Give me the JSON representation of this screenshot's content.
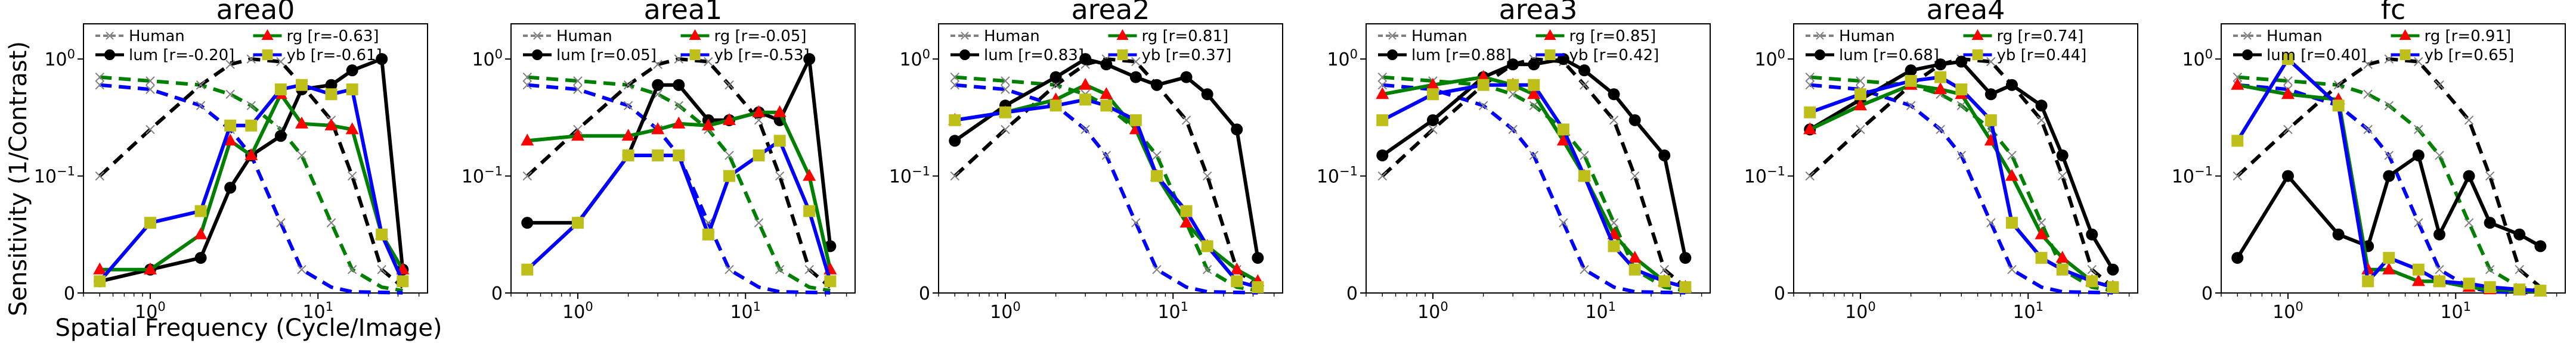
{
  "figure": {
    "ylabel": "Sensitivity (1/Contrast)",
    "xlabel": "Spatial Frequency (Cycle/Image)"
  },
  "style": {
    "colors": {
      "lum": "#000000",
      "rg": "#ff0000",
      "yb": "#bfbf1a",
      "human": "#808080"
    },
    "line_colors": {
      "lum": "#000000",
      "rg": "#008000",
      "yb": "#0000ff"
    }
  },
  "chart_data": [
    {
      "type": "line",
      "title": "area0",
      "legend": {
        "placement": "top",
        "human": "Human",
        "lum": "lum [r=-0.20]",
        "rg": "rg    [r=-0.63]",
        "yb": "yb    [r=-0.61]"
      },
      "x_scale": "log",
      "y_scale": "symlog",
      "xlim": [
        0.4,
        45
      ],
      "ylim": [
        0,
        2
      ],
      "xticks": [
        "10^0",
        "10^1"
      ],
      "yticks": [
        "0",
        "10^-1",
        "10^0"
      ],
      "x": [
        0.5,
        1.0,
        2.0,
        3.0,
        4.0,
        6.0,
        8.0,
        12.0,
        16.0,
        24.0,
        32.0
      ],
      "series": [
        {
          "key": "lum",
          "y": [
            0.01,
            0.02,
            0.03,
            0.09,
            0.15,
            0.22,
            0.55,
            0.6,
            0.8,
            1.0,
            0.02
          ]
        },
        {
          "key": "rg",
          "y": [
            0.02,
            0.02,
            0.05,
            0.2,
            0.15,
            0.5,
            0.28,
            0.27,
            0.25,
            0.05,
            0.02
          ]
        },
        {
          "key": "yb",
          "y": [
            0.01,
            0.06,
            0.07,
            0.27,
            0.27,
            0.55,
            0.6,
            0.5,
            0.55,
            0.05,
            0.01
          ]
        }
      ],
      "human": {
        "lum": [
          0.1,
          0.25,
          0.6,
          0.9,
          1.0,
          0.95,
          0.6,
          0.3,
          0.1,
          0.02,
          0.005
        ],
        "rg": [
          0.7,
          0.65,
          0.6,
          0.5,
          0.4,
          0.25,
          0.15,
          0.06,
          0.02,
          0.005,
          0.002
        ],
        "yb": [
          0.6,
          0.55,
          0.4,
          0.25,
          0.15,
          0.06,
          0.02,
          0.005,
          0.001,
          0.0005,
          0.0002
        ]
      }
    },
    {
      "type": "line",
      "title": "area1",
      "legend": {
        "placement": "top",
        "human": "Human",
        "lum": "lum [r=0.05]",
        "rg": "rg    [r=-0.05]",
        "yb": "yb    [r=-0.53]"
      },
      "x_scale": "log",
      "y_scale": "symlog",
      "xlim": [
        0.4,
        45
      ],
      "ylim": [
        0,
        2
      ],
      "xticks": [
        "10^0",
        "10^1"
      ],
      "yticks": [
        "0",
        "10^-1",
        "10^0"
      ],
      "x": [
        0.5,
        1.0,
        2.0,
        3.0,
        4.0,
        6.0,
        8.0,
        12.0,
        16.0,
        24.0,
        32.0
      ],
      "series": [
        {
          "key": "lum",
          "y": [
            0.06,
            0.06,
            0.15,
            0.6,
            0.6,
            0.3,
            0.3,
            0.35,
            0.3,
            1.0,
            0.04
          ]
        },
        {
          "key": "rg",
          "y": [
            0.2,
            0.22,
            0.22,
            0.25,
            0.28,
            0.27,
            0.3,
            0.35,
            0.35,
            0.1,
            0.02
          ]
        },
        {
          "key": "yb",
          "y": [
            0.02,
            0.06,
            0.15,
            0.15,
            0.15,
            0.05,
            0.1,
            0.15,
            0.2,
            0.07,
            0.01
          ]
        }
      ],
      "human": {
        "lum": [
          0.1,
          0.25,
          0.6,
          0.9,
          1.0,
          0.95,
          0.6,
          0.3,
          0.1,
          0.02,
          0.005
        ],
        "rg": [
          0.7,
          0.65,
          0.6,
          0.5,
          0.4,
          0.25,
          0.15,
          0.06,
          0.02,
          0.005,
          0.002
        ],
        "yb": [
          0.6,
          0.55,
          0.4,
          0.25,
          0.15,
          0.06,
          0.02,
          0.005,
          0.001,
          0.0005,
          0.0002
        ]
      }
    },
    {
      "type": "line",
      "title": "area2",
      "legend": {
        "placement": "top",
        "human": "Human",
        "lum": "lum [r=0.83]",
        "rg": "rg    [r=0.81]",
        "yb": "yb    [r=0.37]"
      },
      "x_scale": "log",
      "y_scale": "symlog",
      "xlim": [
        0.4,
        45
      ],
      "ylim": [
        0,
        2
      ],
      "xticks": [
        "10^0",
        "10^1"
      ],
      "yticks": [
        "0",
        "10^-1",
        "10^0"
      ],
      "x": [
        0.5,
        1.0,
        2.0,
        3.0,
        4.0,
        6.0,
        8.0,
        12.0,
        16.0,
        24.0,
        32.0
      ],
      "series": [
        {
          "key": "lum",
          "y": [
            0.2,
            0.4,
            0.7,
            1.0,
            0.9,
            0.7,
            0.6,
            0.7,
            0.5,
            0.25,
            0.03
          ]
        },
        {
          "key": "rg",
          "y": [
            0.3,
            0.35,
            0.45,
            0.6,
            0.5,
            0.25,
            0.1,
            0.06,
            0.04,
            0.02,
            0.01
          ]
        },
        {
          "key": "yb",
          "y": [
            0.3,
            0.35,
            0.4,
            0.45,
            0.4,
            0.3,
            0.1,
            0.07,
            0.04,
            0.01,
            0.005
          ]
        }
      ],
      "human": {
        "lum": [
          0.1,
          0.25,
          0.6,
          0.9,
          1.0,
          0.95,
          0.6,
          0.3,
          0.1,
          0.02,
          0.005
        ],
        "rg": [
          0.7,
          0.65,
          0.6,
          0.5,
          0.4,
          0.25,
          0.15,
          0.06,
          0.02,
          0.005,
          0.002
        ],
        "yb": [
          0.6,
          0.55,
          0.4,
          0.25,
          0.15,
          0.06,
          0.02,
          0.005,
          0.001,
          0.0005,
          0.0002
        ]
      }
    },
    {
      "type": "line",
      "title": "area3",
      "legend": {
        "placement": "top",
        "human": "Human",
        "lum": "lum [r=0.88]",
        "rg": "rg    [r=0.85]",
        "yb": "yb    [r=0.42]"
      },
      "x_scale": "log",
      "y_scale": "symlog",
      "xlim": [
        0.4,
        45
      ],
      "ylim": [
        0,
        2
      ],
      "xticks": [
        "10^0",
        "10^1"
      ],
      "yticks": [
        "0",
        "10^-1",
        "10^0"
      ],
      "x": [
        0.5,
        1.0,
        2.0,
        3.0,
        4.0,
        6.0,
        8.0,
        12.0,
        16.0,
        24.0,
        32.0
      ],
      "series": [
        {
          "key": "lum",
          "y": [
            0.15,
            0.3,
            0.7,
            0.9,
            0.9,
            1.0,
            0.8,
            0.5,
            0.3,
            0.15,
            0.03
          ]
        },
        {
          "key": "rg",
          "y": [
            0.5,
            0.6,
            0.7,
            0.6,
            0.5,
            0.2,
            0.1,
            0.05,
            0.03,
            0.01,
            0.005
          ]
        },
        {
          "key": "yb",
          "y": [
            0.3,
            0.5,
            0.6,
            0.6,
            0.6,
            0.25,
            0.1,
            0.04,
            0.02,
            0.01,
            0.005
          ]
        }
      ],
      "human": {
        "lum": [
          0.1,
          0.25,
          0.6,
          0.9,
          1.0,
          0.95,
          0.6,
          0.3,
          0.1,
          0.02,
          0.005
        ],
        "rg": [
          0.7,
          0.65,
          0.6,
          0.5,
          0.4,
          0.25,
          0.15,
          0.06,
          0.02,
          0.005,
          0.002
        ],
        "yb": [
          0.6,
          0.55,
          0.4,
          0.25,
          0.15,
          0.06,
          0.02,
          0.005,
          0.001,
          0.0005,
          0.0002
        ]
      }
    },
    {
      "type": "line",
      "title": "area4",
      "legend": {
        "placement": "top",
        "human": "Human",
        "lum": "lum [r=0.68]",
        "rg": "rg    [r=0.74]",
        "yb": "yb    [r=0.44]"
      },
      "x_scale": "log",
      "y_scale": "symlog",
      "xlim": [
        0.4,
        45
      ],
      "ylim": [
        0,
        2
      ],
      "xticks": [
        "10^0",
        "10^1"
      ],
      "yticks": [
        "0",
        "10^-1",
        "10^0"
      ],
      "x": [
        0.5,
        1.0,
        2.0,
        3.0,
        4.0,
        6.0,
        8.0,
        12.0,
        16.0,
        24.0,
        32.0
      ],
      "series": [
        {
          "key": "lum",
          "y": [
            0.25,
            0.45,
            0.8,
            0.9,
            0.95,
            0.5,
            0.6,
            0.4,
            0.15,
            0.05,
            0.02
          ]
        },
        {
          "key": "rg",
          "y": [
            0.25,
            0.4,
            0.6,
            0.55,
            0.5,
            0.2,
            0.1,
            0.05,
            0.03,
            0.01,
            0.005
          ]
        },
        {
          "key": "yb",
          "y": [
            0.35,
            0.5,
            0.65,
            0.7,
            0.55,
            0.3,
            0.06,
            0.03,
            0.02,
            0.01,
            0.005
          ]
        }
      ],
      "human": {
        "lum": [
          0.1,
          0.25,
          0.6,
          0.9,
          1.0,
          0.95,
          0.6,
          0.3,
          0.1,
          0.02,
          0.005
        ],
        "rg": [
          0.7,
          0.65,
          0.6,
          0.5,
          0.4,
          0.25,
          0.15,
          0.06,
          0.02,
          0.005,
          0.002
        ],
        "yb": [
          0.6,
          0.55,
          0.4,
          0.25,
          0.15,
          0.06,
          0.02,
          0.005,
          0.001,
          0.0005,
          0.0002
        ]
      }
    },
    {
      "type": "line",
      "title": "fc",
      "legend": {
        "placement": "top",
        "human": "Human",
        "lum": "lum [r=0.40]",
        "rg": "rg    [r=0.91]",
        "yb": "yb    [r=0.65]"
      },
      "x_scale": "log",
      "y_scale": "symlog",
      "xlim": [
        0.4,
        45
      ],
      "ylim": [
        0,
        2
      ],
      "xticks": [
        "10^0",
        "10^1"
      ],
      "yticks": [
        "0",
        "10^-1",
        "10^0"
      ],
      "x": [
        0.5,
        1.0,
        2.0,
        3.0,
        4.0,
        6.0,
        8.0,
        12.0,
        16.0,
        24.0,
        32.0
      ],
      "series": [
        {
          "key": "lum",
          "y": [
            0.03,
            0.1,
            0.05,
            0.04,
            0.1,
            0.15,
            0.05,
            0.1,
            0.06,
            0.05,
            0.04
          ]
        },
        {
          "key": "rg",
          "y": [
            0.6,
            0.5,
            0.45,
            0.02,
            0.02,
            0.01,
            0.01,
            0.005,
            0.003,
            0.002,
            0.001
          ]
        },
        {
          "key": "yb",
          "y": [
            0.2,
            1.0,
            0.4,
            0.01,
            0.03,
            0.02,
            0.01,
            0.008,
            0.005,
            0.003,
            0.002
          ]
        }
      ],
      "human": {
        "lum": [
          0.1,
          0.25,
          0.6,
          0.9,
          1.0,
          0.95,
          0.6,
          0.3,
          0.1,
          0.02,
          0.005
        ],
        "rg": [
          0.7,
          0.65,
          0.6,
          0.5,
          0.4,
          0.25,
          0.15,
          0.06,
          0.02,
          0.005,
          0.002
        ],
        "yb": [
          0.6,
          0.55,
          0.4,
          0.25,
          0.15,
          0.06,
          0.02,
          0.005,
          0.001,
          0.0005,
          0.0002
        ]
      }
    }
  ]
}
